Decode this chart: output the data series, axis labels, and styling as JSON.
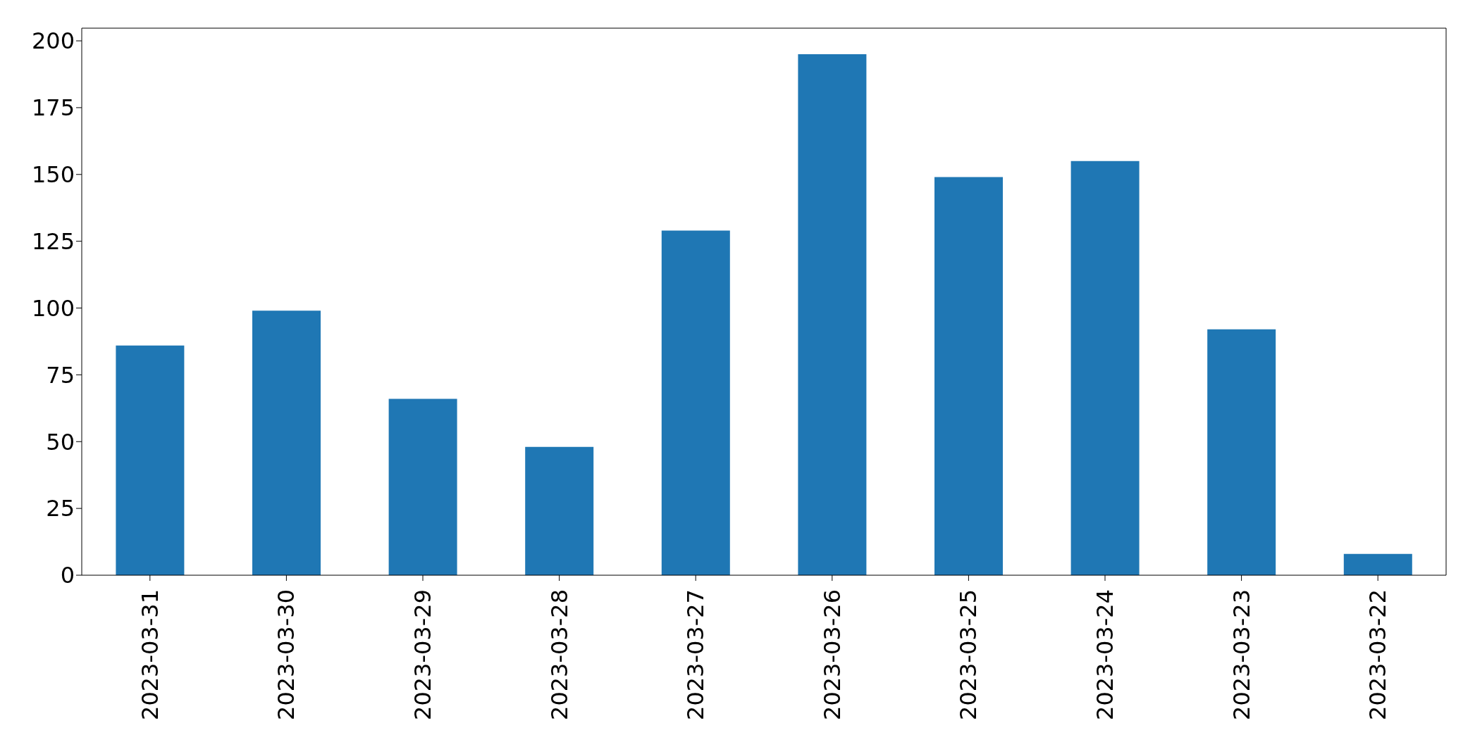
{
  "chart_data": {
    "type": "bar",
    "categories": [
      "2023-03-31",
      "2023-03-30",
      "2023-03-29",
      "2023-03-28",
      "2023-03-27",
      "2023-03-26",
      "2023-03-25",
      "2023-03-24",
      "2023-03-23",
      "2023-03-22"
    ],
    "values": [
      86,
      99,
      66,
      48,
      129,
      195,
      149,
      155,
      92,
      8
    ],
    "color": "#1f77b4",
    "ylim": [
      0,
      204.75
    ],
    "yticks": [
      0,
      25,
      50,
      75,
      100,
      125,
      150,
      175,
      200
    ],
    "grid": false
  }
}
